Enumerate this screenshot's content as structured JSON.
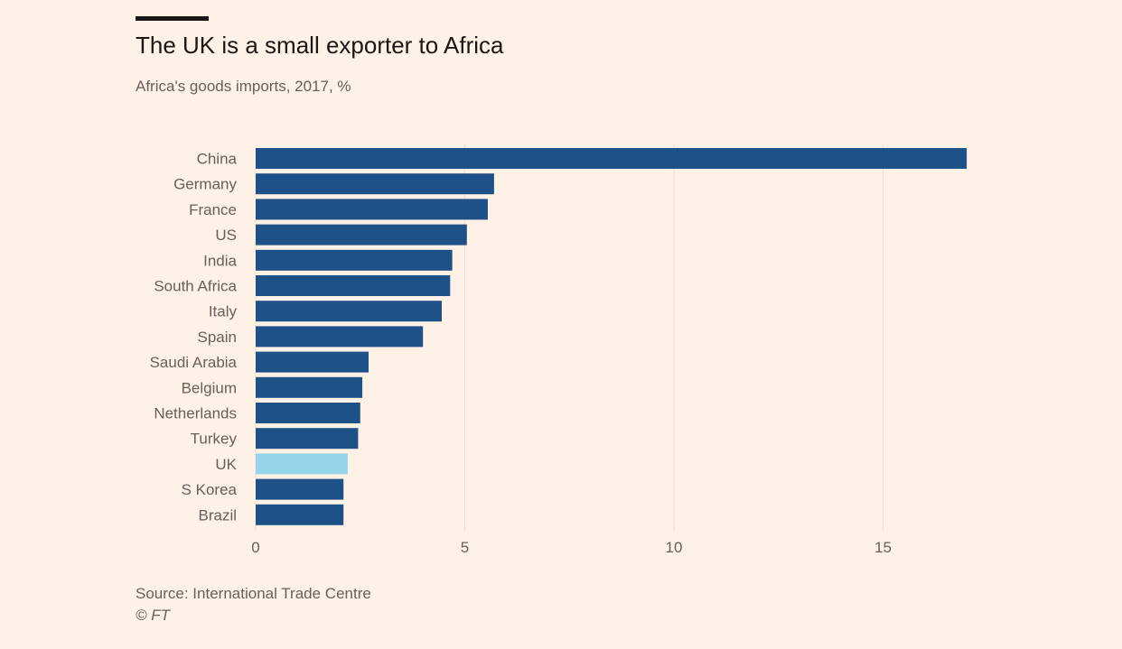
{
  "header": {
    "title": "The UK is a small exporter to Africa",
    "subtitle": "Africa's goods imports, 2017, %"
  },
  "footer": {
    "source": "Source: International Trade Centre",
    "credit": "© FT"
  },
  "colors": {
    "background": "#fff1e5",
    "bar": "#1f5189",
    "highlight": "#96d4ea",
    "gridline": "#ece2d8",
    "tick_text": "#66605c"
  },
  "chart_data": {
    "type": "bar",
    "orientation": "horizontal",
    "title": "The UK is a small exporter to Africa",
    "subtitle": "Africa's goods imports, 2017, %",
    "xlabel": "",
    "ylabel": "",
    "xlim": [
      0,
      17
    ],
    "xticks": [
      0,
      5,
      10,
      15
    ],
    "grid": true,
    "categories": [
      "China",
      "Germany",
      "France",
      "US",
      "India",
      "South Africa",
      "Italy",
      "Spain",
      "Saudi Arabia",
      "Belgium",
      "Netherlands",
      "Turkey",
      "UK",
      "S Korea",
      "Brazil"
    ],
    "values": [
      17.0,
      5.7,
      5.55,
      5.05,
      4.7,
      4.65,
      4.45,
      4.0,
      2.7,
      2.55,
      2.5,
      2.45,
      2.2,
      2.1,
      2.1
    ],
    "highlight": "UK"
  }
}
